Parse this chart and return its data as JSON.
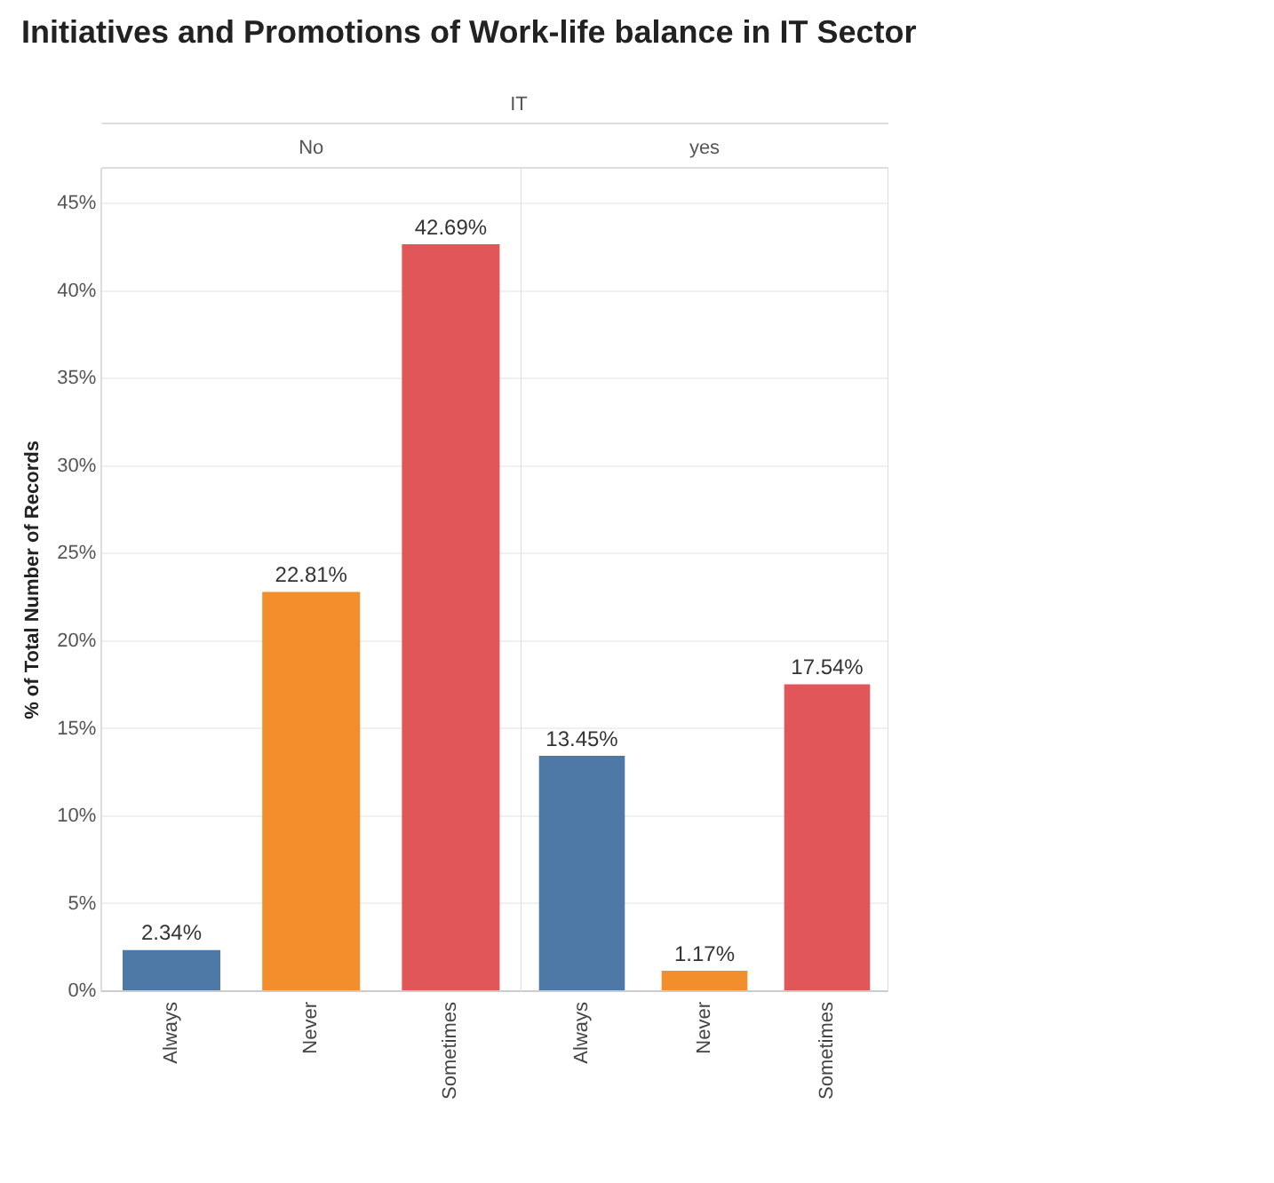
{
  "chart_data": [
    {
      "type": "bar",
      "title": "Initiatives and Promotions of Work-life balance in IT Sector",
      "ylabel": "% of Total Number of Records",
      "annotations": [
        "IT",
        "No"
      ],
      "categories": [
        "Always",
        "Never",
        "Sometimes"
      ],
      "values": [
        2.34,
        22.81,
        42.69
      ],
      "colors": [
        "#4e79a7",
        "#f28e2b",
        "#e15759"
      ],
      "value_labels": [
        "2.34%",
        "22.81%",
        "42.69%"
      ],
      "ylim": [
        0,
        47
      ],
      "yticks": [
        {
          "value": 0,
          "label": "0%"
        },
        {
          "value": 5,
          "label": "5%"
        },
        {
          "value": 10,
          "label": "10%"
        },
        {
          "value": 15,
          "label": "15%"
        },
        {
          "value": 20,
          "label": "20%"
        },
        {
          "value": 25,
          "label": "25%"
        },
        {
          "value": 30,
          "label": "30%"
        },
        {
          "value": 35,
          "label": "35%"
        },
        {
          "value": 40,
          "label": "40%"
        },
        {
          "value": 45,
          "label": "45%"
        }
      ],
      "grid": "y"
    },
    {
      "type": "bar",
      "annotations": [
        "yes"
      ],
      "categories": [
        "Always",
        "Never",
        "Sometimes"
      ],
      "values": [
        13.45,
        1.17,
        17.54
      ],
      "colors": [
        "#4e79a7",
        "#f28e2b",
        "#e15759"
      ],
      "value_labels": [
        "13.45%",
        "1.17%",
        "17.54%"
      ],
      "ylim": [
        0,
        47
      ],
      "yticks": [
        0,
        5,
        10,
        15,
        20,
        25,
        30,
        35,
        40,
        45
      ],
      "tick_labels": "x",
      "grid": "y"
    }
  ]
}
